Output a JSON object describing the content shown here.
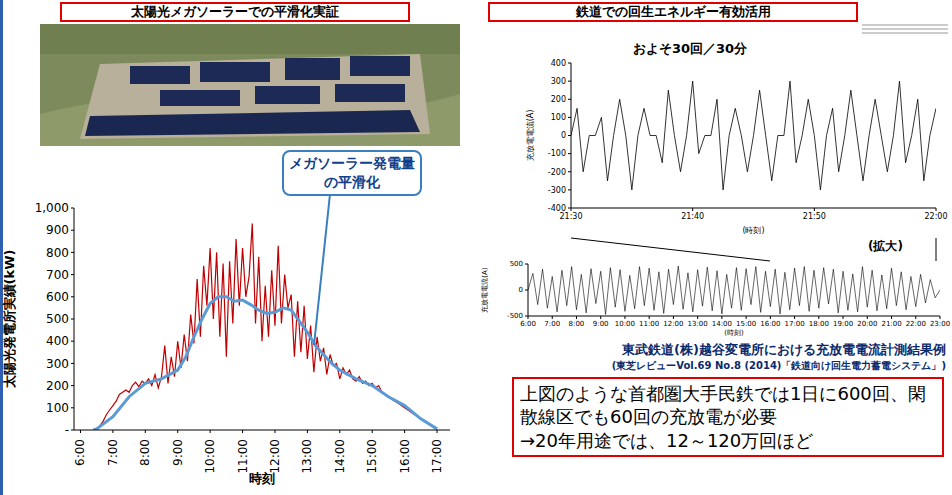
{
  "header": {
    "left": "太陽光メガソーラーでの平滑化実証",
    "right": "鉄道での回生エネルギー有効活用"
  },
  "chart_data": [
    {
      "type": "line",
      "annotation": "メガソーラー発電量の平滑化",
      "x_label": "時刻",
      "y_label": "太陽光発電所実績(kW)",
      "xlim": [
        5.8,
        17.4
      ],
      "xticks": [
        {
          "value": 6,
          "label": "6:00"
        },
        {
          "value": 7,
          "label": "7:00"
        },
        {
          "value": 8,
          "label": "8:00"
        },
        {
          "value": 9,
          "label": "9:00"
        },
        {
          "value": 10,
          "label": "10:00"
        },
        {
          "value": 11,
          "label": "11:00"
        },
        {
          "value": 12,
          "label": "12:00"
        },
        {
          "value": 13,
          "label": "13:00"
        },
        {
          "value": 14,
          "label": "14:00"
        },
        {
          "value": 15,
          "label": "15:00"
        },
        {
          "value": 16,
          "label": "16:00"
        },
        {
          "value": 17,
          "label": "17:00"
        }
      ],
      "ylim": [
        0,
        1000
      ],
      "yticks": [
        {
          "value": 0,
          "label": "-"
        },
        100,
        200,
        300,
        400,
        500,
        600,
        700,
        800,
        900,
        {
          "value": 1000,
          "label": "1,000"
        }
      ],
      "grid": false,
      "series": [
        {
          "color": "#c00000",
          "line_style": "solid",
          "x": [
            6.4,
            6.5,
            6.6,
            6.7,
            6.8,
            6.9,
            7,
            7.1,
            7.2,
            7.3,
            7.4,
            7.5,
            7.6,
            7.7,
            7.8,
            7.9,
            8,
            8.1,
            8.2,
            8.3,
            8.4,
            8.5,
            8.6,
            8.7,
            8.8,
            8.9,
            9,
            9.1,
            9.2,
            9.3,
            9.4,
            9.5,
            9.6,
            9.7,
            9.8,
            9.9,
            10,
            10.1,
            10.2,
            10.3,
            10.4,
            10.5,
            10.6,
            10.7,
            10.8,
            10.9,
            11,
            11.1,
            11.2,
            11.3,
            11.4,
            11.5,
            11.6,
            11.7,
            11.8,
            11.9,
            12,
            12.1,
            12.2,
            12.3,
            12.4,
            12.5,
            12.6,
            12.7,
            12.8,
            12.9,
            13,
            13.1,
            13.2,
            13.3,
            13.4,
            13.5,
            13.6,
            13.7,
            13.8,
            13.9,
            14,
            14.1,
            14.2,
            14.3,
            14.4,
            14.5,
            14.6,
            14.7,
            14.8,
            14.9,
            15,
            15.1,
            15.2,
            15.3,
            15.4,
            15.5,
            15.6,
            15.7,
            15.8,
            15.9,
            16,
            16.1,
            16.2,
            16.3,
            16.4,
            16.5,
            16.6,
            16.7,
            16.8,
            16.9,
            17
          ],
          "values": [
            0,
            5,
            20,
            40,
            70,
            90,
            110,
            130,
            160,
            170,
            180,
            170,
            200,
            215,
            195,
            220,
            210,
            230,
            200,
            250,
            190,
            240,
            380,
            210,
            330,
            240,
            400,
            280,
            430,
            310,
            520,
            390,
            680,
            420,
            740,
            560,
            820,
            500,
            800,
            420,
            750,
            330,
            760,
            480,
            860,
            560,
            820,
            600,
            690,
            930,
            480,
            780,
            400,
            650,
            420,
            720,
            470,
            830,
            480,
            700,
            550,
            610,
            330,
            580,
            350,
            560,
            320,
            470,
            260,
            420,
            310,
            370,
            250,
            340,
            290,
            300,
            230,
            280,
            250,
            270,
            230,
            220,
            240,
            210,
            220,
            200,
            210,
            190,
            200,
            170,
            160,
            150,
            140,
            130,
            120,
            110,
            100,
            90,
            80,
            70,
            60,
            50,
            40,
            30,
            20,
            10,
            5
          ]
        },
        {
          "color": "#5b9bd5",
          "line_style": "solid",
          "x": [
            6.4,
            6.5,
            7,
            7.5,
            8,
            8.5,
            9,
            9.25,
            9.5,
            9.75,
            10,
            10.25,
            10.5,
            10.75,
            11,
            11.25,
            11.5,
            11.75,
            12,
            12.25,
            12.5,
            12.75,
            13,
            13.25,
            13.5,
            13.75,
            14,
            14.5,
            15,
            15.5,
            16,
            16.5,
            17
          ],
          "values": [
            0,
            5,
            60,
            150,
            210,
            230,
            270,
            330,
            420,
            500,
            570,
            600,
            600,
            580,
            585,
            565,
            540,
            525,
            530,
            550,
            540,
            490,
            440,
            380,
            340,
            300,
            270,
            230,
            200,
            150,
            110,
            50,
            5
          ]
        }
      ]
    },
    {
      "type": "line",
      "title": "およそ30回／30分",
      "x_label": "(時刻)",
      "y_label": "充放電電流(A)",
      "xlim": [
        0,
        30
      ],
      "xticks": [
        {
          "value": 0,
          "label": "21:30"
        },
        {
          "value": 10,
          "label": "21:40"
        },
        {
          "value": 20,
          "label": "21:50"
        },
        {
          "value": 30,
          "label": "22:00"
        }
      ],
      "ylim": [
        -400,
        400
      ],
      "yticks": [
        -400,
        -300,
        -200,
        -100,
        0,
        100,
        200,
        300,
        400
      ],
      "grid": false,
      "series": [
        {
          "color": "#000000",
          "line_style": "solid",
          "x": [
            0,
            0.5,
            1,
            1.5,
            2,
            2.5,
            3,
            3.5,
            4,
            4.5,
            5,
            5.5,
            6,
            6.5,
            7,
            7.5,
            8,
            8.5,
            9,
            9.5,
            10,
            10.5,
            11,
            11.5,
            12,
            12.5,
            13,
            13.5,
            14,
            14.5,
            15,
            15.5,
            16,
            16.5,
            17,
            17.5,
            18,
            18.5,
            19,
            19.5,
            20,
            20.5,
            21,
            21.5,
            22,
            22.5,
            23,
            23.5,
            24,
            24.5,
            25,
            25.5,
            26,
            26.5,
            27,
            27.5,
            28,
            28.5,
            29,
            29.5,
            30
          ],
          "values": [
            0,
            150,
            -200,
            0,
            0,
            100,
            -250,
            0,
            200,
            0,
            -300,
            0,
            150,
            0,
            0,
            -150,
            250,
            0,
            -200,
            0,
            300,
            -100,
            0,
            0,
            200,
            -300,
            0,
            150,
            0,
            -200,
            0,
            250,
            0,
            -250,
            0,
            0,
            300,
            -150,
            0,
            200,
            0,
            -300,
            0,
            150,
            -200,
            0,
            250,
            0,
            -250,
            0,
            200,
            0,
            -200,
            0,
            300,
            -150,
            0,
            200,
            -250,
            0,
            150
          ]
        }
      ]
    },
    {
      "type": "line",
      "annotation": "(拡大)",
      "x_label": "(時刻)",
      "y_label": "充放電電流(A)",
      "xlim": [
        6,
        23
      ],
      "xticks": [
        {
          "value": 6,
          "label": "6:00"
        },
        {
          "value": 7,
          "label": "7:00"
        },
        {
          "value": 8,
          "label": "8:00"
        },
        {
          "value": 9,
          "label": "9:00"
        },
        {
          "value": 10,
          "label": "10:00"
        },
        {
          "value": 11,
          "label": "11:00"
        },
        {
          "value": 12,
          "label": "12:00"
        },
        {
          "value": 13,
          "label": "13:00"
        },
        {
          "value": 14,
          "label": "14:00"
        },
        {
          "value": 15,
          "label": "15:00"
        },
        {
          "value": 16,
          "label": "16:00"
        },
        {
          "value": 17,
          "label": "17:00"
        },
        {
          "value": 18,
          "label": "18:00"
        },
        {
          "value": 19,
          "label": "19:00"
        },
        {
          "value": 20,
          "label": "20:00"
        },
        {
          "value": 21,
          "label": "21:00"
        },
        {
          "value": 22,
          "label": "22:00"
        },
        {
          "value": 23,
          "label": "23:00"
        }
      ],
      "ylim": [
        -500,
        500
      ],
      "yticks": [
        -500,
        0,
        500
      ],
      "grid": false,
      "series": [
        {
          "color": "#000000",
          "line_style": "solid",
          "x": [
            6,
            6.2,
            6.4,
            6.6,
            6.8,
            7,
            7.2,
            7.4,
            7.6,
            7.8,
            8,
            8.2,
            8.4,
            8.6,
            8.8,
            9,
            9.2,
            9.4,
            9.6,
            9.8,
            10,
            10.2,
            10.4,
            10.6,
            10.8,
            11,
            11.2,
            11.4,
            11.6,
            11.8,
            12,
            12.2,
            12.4,
            12.6,
            12.8,
            13,
            13.2,
            13.4,
            13.6,
            13.8,
            14,
            14.2,
            14.4,
            14.6,
            14.8,
            15,
            15.2,
            15.4,
            15.6,
            15.8,
            16,
            16.2,
            16.4,
            16.6,
            16.8,
            17,
            17.2,
            17.4,
            17.6,
            17.8,
            18,
            18.2,
            18.4,
            18.6,
            18.8,
            19,
            19.2,
            19.4,
            19.6,
            19.8,
            20,
            20.2,
            20.4,
            20.6,
            20.8,
            21,
            21.2,
            21.4,
            21.6,
            21.8,
            22,
            22.2,
            22.4,
            22.6,
            22.8,
            23
          ],
          "values": [
            0,
            320,
            -280,
            400,
            -350,
            260,
            -420,
            380,
            -300,
            450,
            -380,
            300,
            -440,
            410,
            -260,
            360,
            -470,
            430,
            -330,
            390,
            -410,
            280,
            -360,
            450,
            -300,
            420,
            -390,
            350,
            -450,
            400,
            -280,
            460,
            -370,
            330,
            -420,
            390,
            -310,
            440,
            -400,
            370,
            -460,
            300,
            -350,
            430,
            -390,
            410,
            -280,
            450,
            -430,
            360,
            -320,
            400,
            -460,
            340,
            -380,
            420,
            -300,
            450,
            -410,
            380,
            -350,
            430,
            -270,
            400,
            -440,
            360,
            -390,
            310,
            -420,
            450,
            -330,
            380,
            -400,
            290,
            -360,
            420,
            -300,
            350,
            -380,
            260,
            -320,
            300,
            -250,
            200,
            -150,
            0
          ]
        }
      ]
    }
  ],
  "captions": [
    "東武鉄道(株)越谷変電所における充放電電流計測結果例",
    "(東芝レビューVol.69 No.8 (2014)「鉄道向け回生電力蓄電システム」)"
  ],
  "text_box": [
    "上図のような首都圏大手民鉄では1日に600回、閑散線区でも60回の充放電が必要",
    "→20年用途では、12～120万回ほど"
  ]
}
